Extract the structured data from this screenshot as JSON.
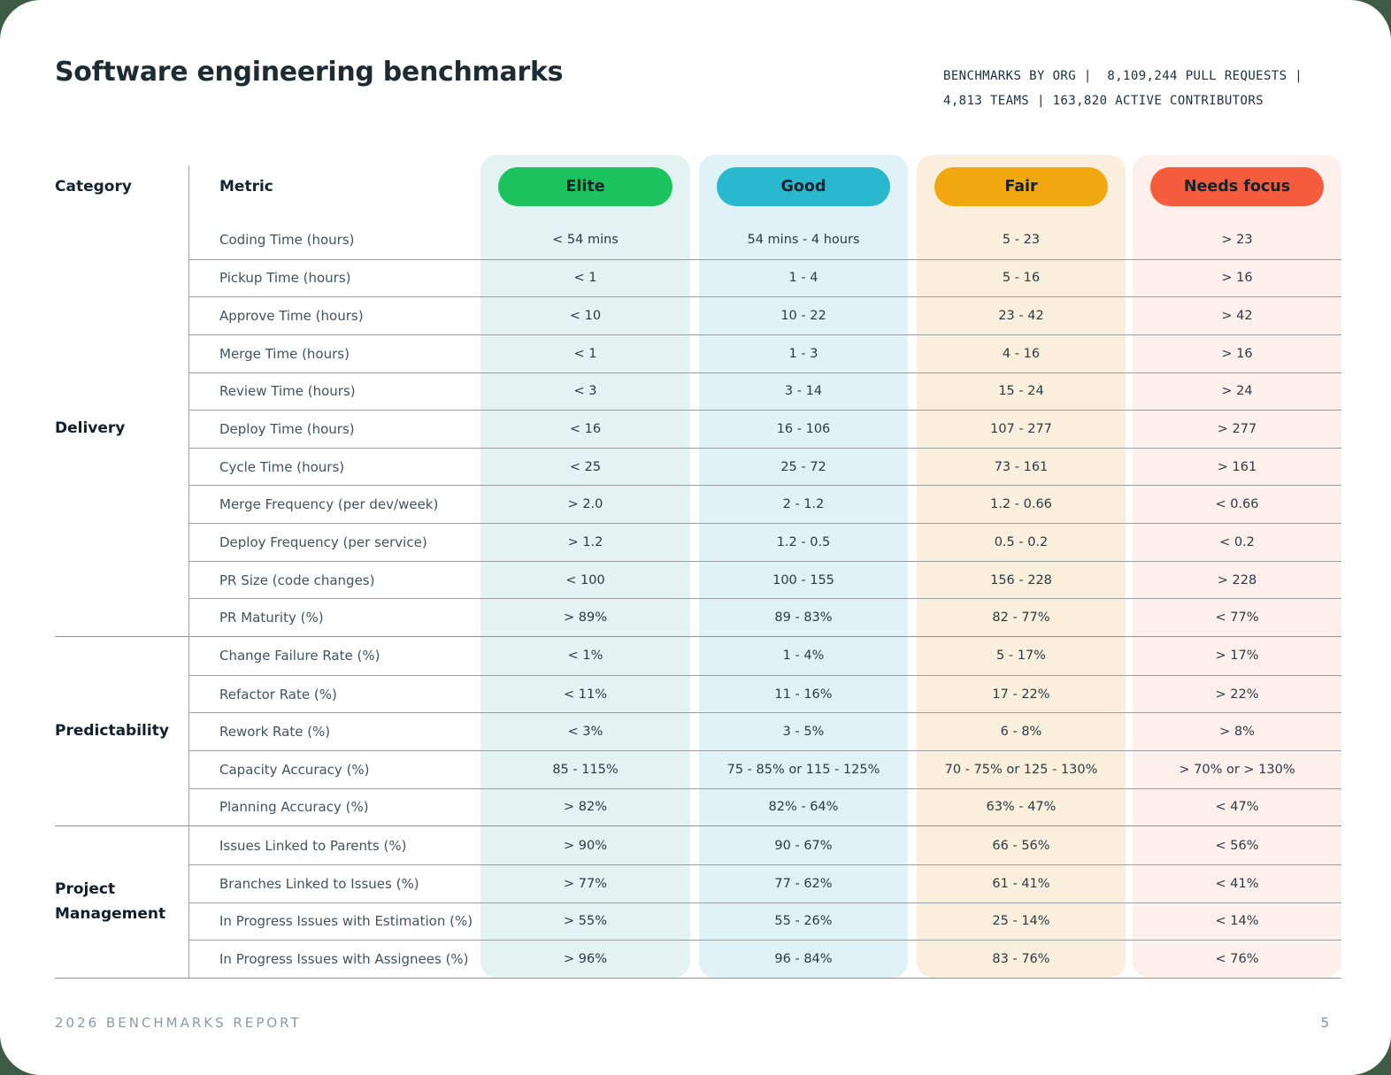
{
  "page": {
    "title": "Software engineering benchmarks",
    "stats_line1": "BENCHMARKS BY ORG |  8,109,244 PULL REQUESTS |",
    "stats_line2": "4,813 TEAMS | 163,820 ACTIVE CONTRIBUTORS",
    "footer_left": "2026 BENCHMARKS REPORT",
    "footer_page": "5"
  },
  "table": {
    "category_header": "Category",
    "metric_header": "Metric",
    "tiers": [
      {
        "label": "Elite",
        "pill_color": "#1dc35f",
        "col_bg": "#e3f3f1"
      },
      {
        "label": "Good",
        "pill_color": "#29b8ce",
        "col_bg": "#dff2f8"
      },
      {
        "label": "Fair",
        "pill_color": "#f1a70e",
        "col_bg": "#faefdc"
      },
      {
        "label": "Needs focus",
        "pill_color": "#f55b3d",
        "col_bg": "#fdefec"
      }
    ],
    "sections": [
      {
        "category": "Delivery",
        "rows": [
          {
            "metric": "Coding Time (hours)",
            "values": [
              "< 54 mins",
              "54 mins - 4 hours",
              "5 - 23",
              "> 23"
            ]
          },
          {
            "metric": "Pickup Time (hours)",
            "values": [
              "< 1",
              "1 - 4",
              "5 - 16",
              "> 16"
            ]
          },
          {
            "metric": "Approve Time (hours)",
            "values": [
              "< 10",
              "10 - 22",
              "23 - 42",
              "> 42"
            ]
          },
          {
            "metric": "Merge Time (hours)",
            "values": [
              "< 1",
              "1 - 3",
              "4 - 16",
              "> 16"
            ]
          },
          {
            "metric": "Review Time (hours)",
            "values": [
              "< 3",
              "3 - 14",
              "15 - 24",
              "> 24"
            ]
          },
          {
            "metric": "Deploy Time (hours)",
            "values": [
              "< 16",
              "16 - 106",
              "107 - 277",
              "> 277"
            ]
          },
          {
            "metric": "Cycle Time (hours)",
            "values": [
              "< 25",
              "25 - 72",
              "73 - 161",
              "> 161"
            ]
          },
          {
            "metric": "Merge Frequency (per dev/week)",
            "values": [
              "> 2.0",
              "2 - 1.2",
              "1.2 - 0.66",
              "< 0.66"
            ]
          },
          {
            "metric": "Deploy Frequency (per service)",
            "values": [
              "> 1.2",
              "1.2 - 0.5",
              "0.5 - 0.2",
              "< 0.2"
            ]
          },
          {
            "metric": "PR Size (code changes)",
            "values": [
              "< 100",
              "100 - 155",
              "156 - 228",
              "> 228"
            ]
          },
          {
            "metric": "PR Maturity (%)",
            "values": [
              "> 89%",
              "89 - 83%",
              "82 - 77%",
              "< 77%"
            ]
          }
        ]
      },
      {
        "category": "Predictability",
        "rows": [
          {
            "metric": "Change Failure Rate (%)",
            "values": [
              "< 1%",
              "1 - 4%",
              "5 - 17%",
              "> 17%"
            ]
          },
          {
            "metric": "Refactor Rate (%)",
            "values": [
              "< 11%",
              "11 - 16%",
              "17 - 22%",
              "> 22%"
            ]
          },
          {
            "metric": "Rework Rate (%)",
            "values": [
              "< 3%",
              "3 - 5%",
              "6 - 8%",
              "> 8%"
            ]
          },
          {
            "metric": "Capacity Accuracy (%)",
            "values": [
              "85 - 115%",
              "75 - 85% or 115 - 125%",
              "70 - 75% or 125 - 130%",
              "> 70% or > 130%"
            ]
          },
          {
            "metric": "Planning Accuracy (%)",
            "values": [
              "> 82%",
              "82% - 64%",
              "63% - 47%",
              "< 47%"
            ]
          }
        ]
      },
      {
        "category": "Project Management",
        "rows": [
          {
            "metric": "Issues Linked to Parents (%)",
            "values": [
              "> 90%",
              "90 - 67%",
              "66 - 56%",
              "< 56%"
            ]
          },
          {
            "metric": "Branches Linked to Issues (%)",
            "values": [
              "> 77%",
              "77 - 62%",
              "61 - 41%",
              "< 41%"
            ]
          },
          {
            "metric": "In Progress Issues with Estimation (%)",
            "values": [
              "> 55%",
              "55 - 26%",
              "25 - 14%",
              "< 14%"
            ]
          },
          {
            "metric": "In Progress Issues with Assignees (%)",
            "values": [
              "> 96%",
              "96 - 84%",
              "83 - 76%",
              "< 76%"
            ]
          }
        ]
      }
    ]
  }
}
